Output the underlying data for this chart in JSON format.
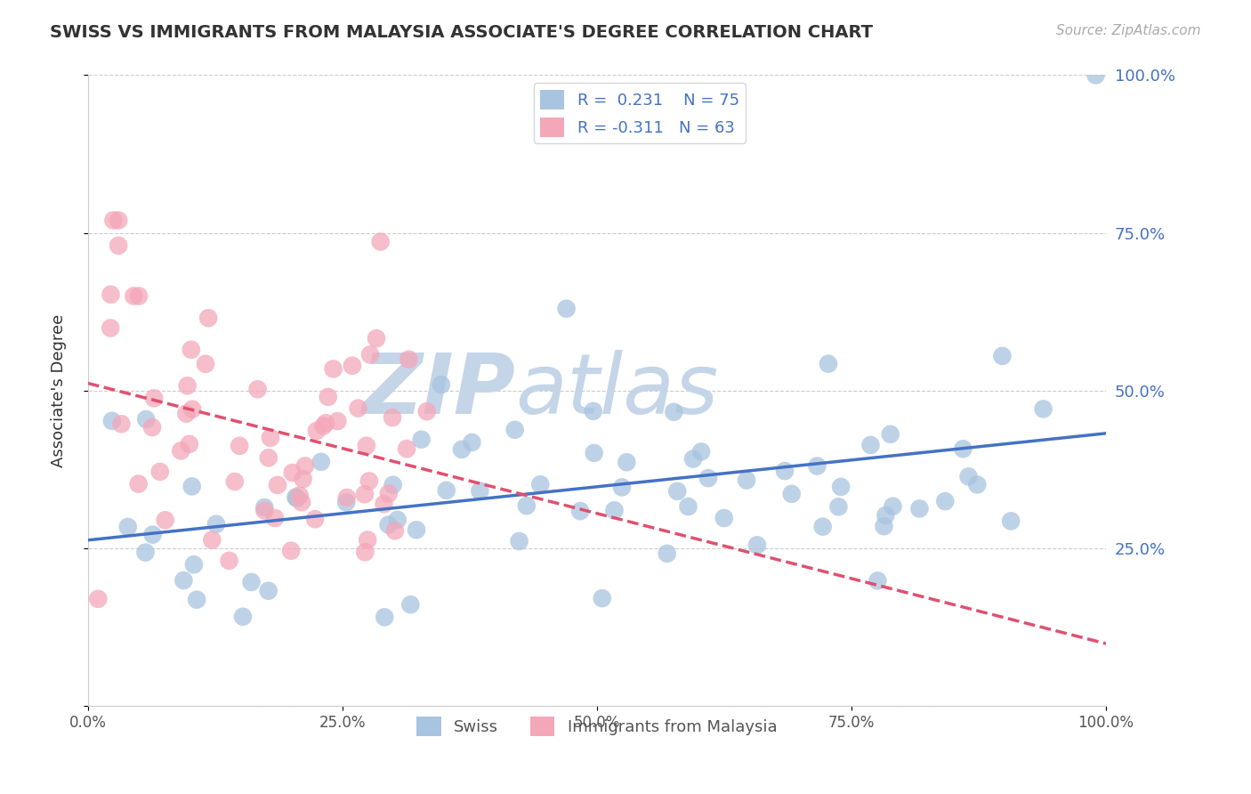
{
  "title": "SWISS VS IMMIGRANTS FROM MALAYSIA ASSOCIATE'S DEGREE CORRELATION CHART",
  "source_text": "Source: ZipAtlas.com",
  "xlabel": "",
  "ylabel": "Associate's Degree",
  "r_swiss": 0.231,
  "n_swiss": 75,
  "r_malaysia": -0.311,
  "n_malaysia": 63,
  "swiss_color": "#a8c4e0",
  "swiss_line_color": "#4472c4",
  "malaysia_color": "#f4a7b9",
  "malaysia_line_color": "#e05070",
  "watermark_zip_color": "#c8d8ee",
  "watermark_atlas_color": "#c8d8ee",
  "background_color": "#ffffff",
  "grid_color": "#cccccc",
  "right_axis_color": "#4472c4",
  "xlim": [
    0,
    1
  ],
  "ylim": [
    0,
    1
  ],
  "x_ticks": [
    0,
    0.25,
    0.5,
    0.75,
    1.0
  ],
  "x_labels": [
    "0.0%",
    "25.0%",
    "50.0%",
    "75.0%",
    "100.0%"
  ],
  "y_ticks_right": [
    0.25,
    0.5,
    0.75,
    1.0
  ],
  "y_labels_right": [
    "25.0%",
    "50.0%",
    "75.0%",
    "100.0%"
  ],
  "bottom_label_swiss": "Swiss",
  "bottom_label_malaysia": "Immigrants from Malaysia"
}
